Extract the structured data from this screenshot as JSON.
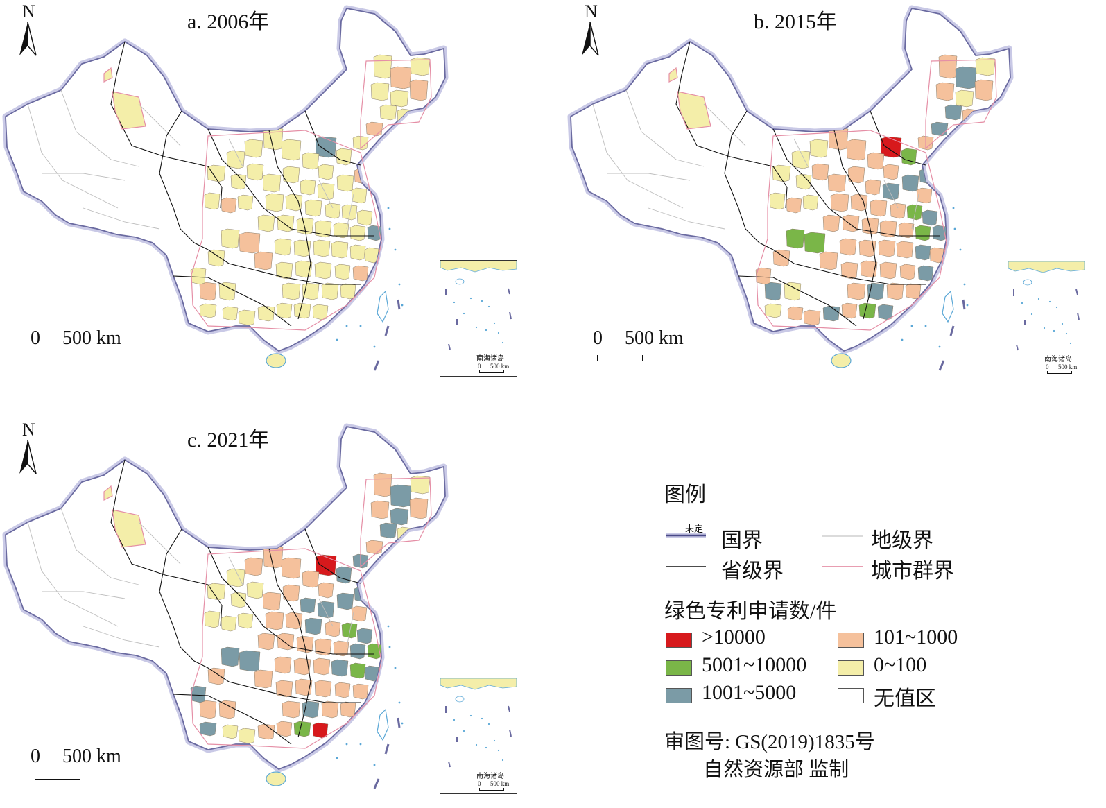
{
  "panels": [
    {
      "id": "a",
      "title": "a. 2006年"
    },
    {
      "id": "b",
      "title": "b. 2015年"
    },
    {
      "id": "c",
      "title": "c. 2021年"
    }
  ],
  "north_label": "N",
  "scale": {
    "zero": "0",
    "distance": "500 km"
  },
  "inset": {
    "label": "南海诸岛",
    "scale_zero": "0",
    "scale_distance": "500 km"
  },
  "legend": {
    "title": "图例",
    "lines": {
      "national_boundary": "国界",
      "undetermined": "未定",
      "prefecture_boundary": "地级界",
      "provincial_boundary": "省级界",
      "urban_agglomeration_boundary": "城市群界"
    },
    "classes_title": "绿色专利申请数/件",
    "classes": [
      {
        "label": ">10000",
        "color": "#d7191c"
      },
      {
        "label": "101~1000",
        "color": "#f5c19c"
      },
      {
        "label": "5001~10000",
        "color": "#7ab648"
      },
      {
        "label": "0~100",
        "color": "#f4eea9"
      },
      {
        "label": "1001~5000",
        "color": "#7b9ba6"
      },
      {
        "label": "无值区",
        "color": "#ffffff"
      }
    ]
  },
  "map_approval": {
    "number": "审图号: GS(2019)1835号",
    "issuer": "自然资源部 监制"
  },
  "colors": {
    "national_boundary": "#6a6aa0",
    "national_boundary_halo": "#c9c9e6",
    "provincial_boundary": "#111111",
    "prefecture_boundary": "#bdbdbd",
    "urban_agglomeration_boundary": "#e58fa6",
    "coast": "#5aa7d6"
  }
}
